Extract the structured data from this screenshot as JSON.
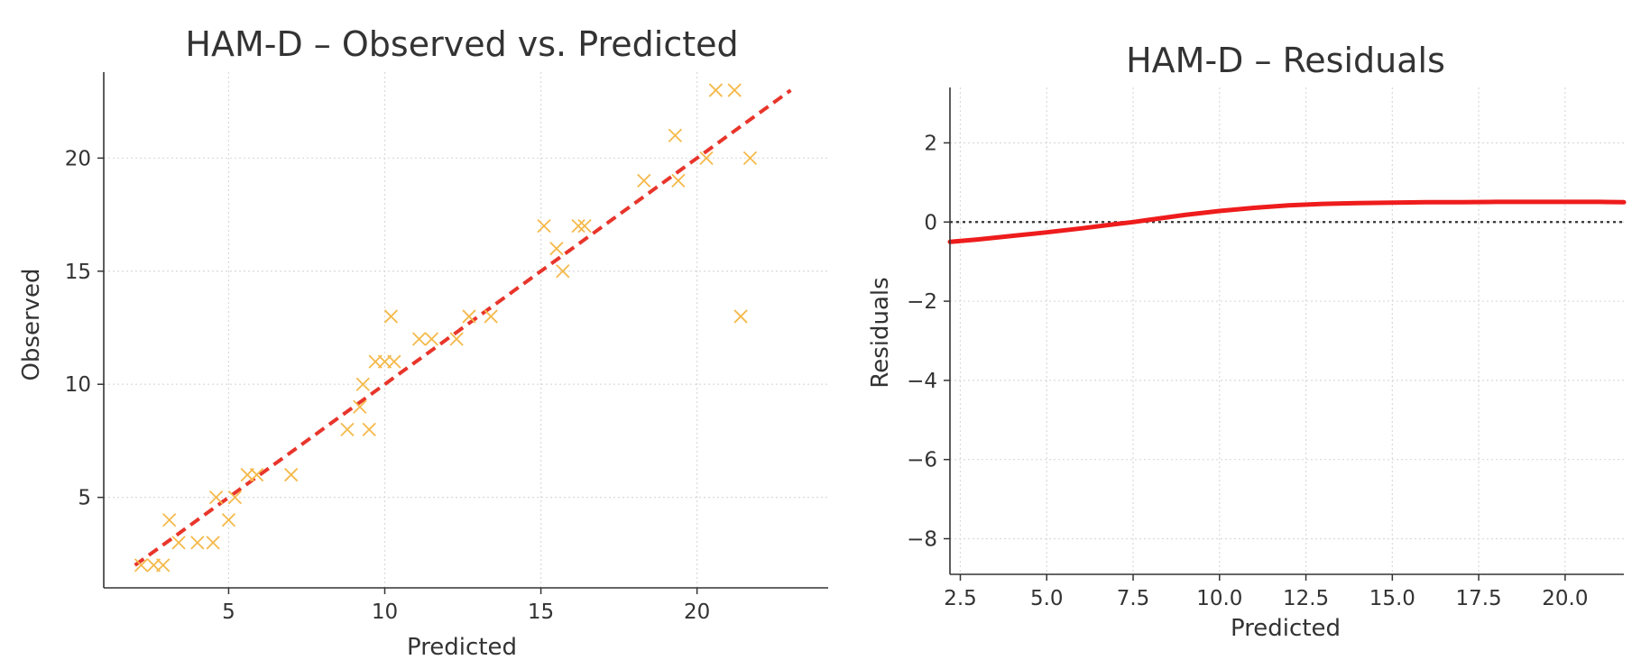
{
  "colors": {
    "scatter_marker": "#f5b94a",
    "fit_line": "#e8352b",
    "residual_line": "#ee1c1c",
    "zero_line": "#333333",
    "grid": "#d9d9d9",
    "axis": "#333333",
    "text": "#333333"
  },
  "chart_data": [
    {
      "type": "scatter",
      "title": "HAM-D – Observed vs. Predicted",
      "xlabel": "Predicted",
      "ylabel": "Observed",
      "xlim": [
        1,
        24.2
      ],
      "ylim": [
        1,
        23.8
      ],
      "xticks": [
        5,
        10,
        15,
        20
      ],
      "yticks": [
        5,
        10,
        15,
        20
      ],
      "grid": true,
      "marker": "x",
      "series": [
        {
          "points": [
            [
              2.2,
              2
            ],
            [
              2.6,
              2
            ],
            [
              2.9,
              2
            ],
            [
              3.1,
              4
            ],
            [
              3.4,
              3
            ],
            [
              4.0,
              3
            ],
            [
              4.5,
              3
            ],
            [
              4.6,
              5
            ],
            [
              5.0,
              4
            ],
            [
              5.2,
              5
            ],
            [
              5.6,
              6
            ],
            [
              5.9,
              6
            ],
            [
              7.0,
              6
            ],
            [
              8.8,
              8
            ],
            [
              9.2,
              9
            ],
            [
              9.3,
              10
            ],
            [
              9.5,
              8
            ],
            [
              9.7,
              11
            ],
            [
              10.0,
              11
            ],
            [
              10.2,
              13
            ],
            [
              10.3,
              11
            ],
            [
              11.1,
              12
            ],
            [
              11.5,
              12
            ],
            [
              12.3,
              12
            ],
            [
              12.7,
              13
            ],
            [
              13.4,
              13
            ],
            [
              15.1,
              17
            ],
            [
              15.5,
              16
            ],
            [
              15.7,
              15
            ],
            [
              16.2,
              17
            ],
            [
              16.4,
              17
            ],
            [
              18.3,
              19
            ],
            [
              19.3,
              21
            ],
            [
              19.4,
              19
            ],
            [
              20.3,
              20
            ],
            [
              20.6,
              23
            ],
            [
              21.2,
              23
            ],
            [
              21.4,
              13
            ],
            [
              21.7,
              20
            ]
          ]
        }
      ],
      "reference_line": {
        "x": [
          2,
          23
        ],
        "y": [
          2,
          23
        ],
        "style": "dashed"
      }
    },
    {
      "type": "line",
      "title": "HAM-D – Residuals",
      "xlabel": "Predicted",
      "ylabel": "Residuals",
      "xlim": [
        2.2,
        21.7
      ],
      "ylim": [
        -8.9,
        3.4
      ],
      "xticks": [
        2.5,
        5.0,
        7.5,
        10.0,
        12.5,
        15.0,
        17.5,
        20.0
      ],
      "xtick_labels": [
        "2.5",
        "5.0",
        "7.5",
        "10.0",
        "12.5",
        "15.0",
        "17.5",
        "20.0"
      ],
      "yticks": [
        -8,
        -6,
        -4,
        -2,
        0,
        2
      ],
      "ytick_labels": [
        "−8",
        "−6",
        "−4",
        "−2",
        "0",
        "2"
      ],
      "grid": true,
      "zero_line": {
        "y": 0,
        "style": "dotted"
      },
      "series": [
        {
          "x": [
            2.2,
            3.0,
            4.0,
            5.0,
            6.0,
            7.0,
            7.5,
            8.0,
            9.0,
            10.0,
            11.0,
            12.0,
            13.0,
            14.0,
            15.0,
            16.0,
            17.0,
            18.0,
            19.0,
            20.0,
            21.0,
            21.7
          ],
          "y": [
            -0.5,
            -0.44,
            -0.35,
            -0.26,
            -0.16,
            -0.05,
            0.0,
            0.06,
            0.18,
            0.28,
            0.36,
            0.42,
            0.46,
            0.48,
            0.49,
            0.5,
            0.5,
            0.51,
            0.51,
            0.51,
            0.51,
            0.5
          ]
        }
      ]
    }
  ]
}
